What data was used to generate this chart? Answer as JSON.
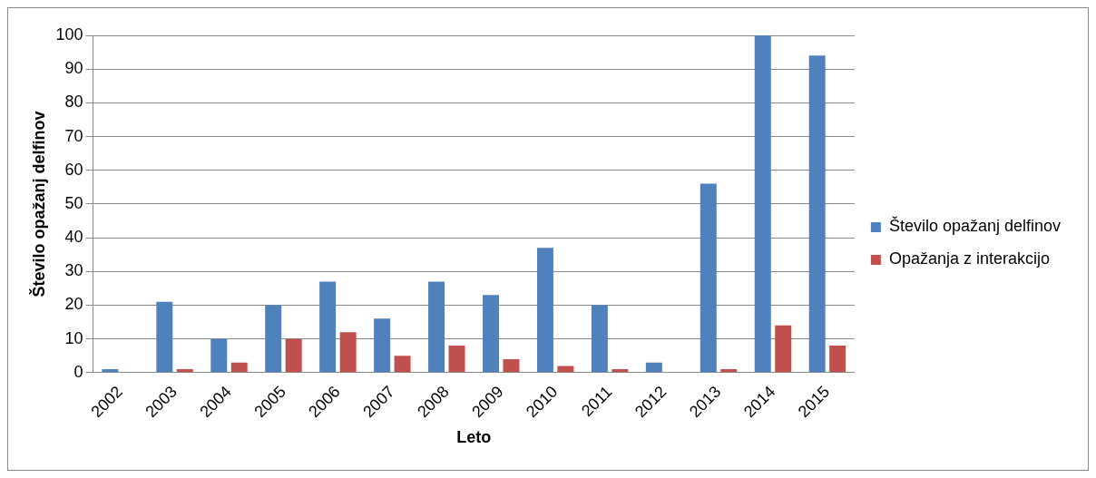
{
  "chart_data": {
    "type": "bar",
    "xlabel": "Leto",
    "ylabel": "Število opažanj delfinov",
    "categories": [
      "2002",
      "2003",
      "2004",
      "2005",
      "2006",
      "2007",
      "2008",
      "2009",
      "2010",
      "2011",
      "2012",
      "2013",
      "2014",
      "2015"
    ],
    "series": [
      {
        "name": "Število opažanj delfinov",
        "color": "#4f81bd",
        "values": [
          1,
          21,
          10,
          20,
          27,
          16,
          27,
          23,
          37,
          20,
          3,
          56,
          100,
          94
        ]
      },
      {
        "name": "Opažanja z interakcijo",
        "color": "#c0504d",
        "values": [
          0,
          1,
          3,
          10,
          12,
          5,
          8,
          4,
          2,
          1,
          0,
          1,
          14,
          8
        ]
      }
    ],
    "ylim": [
      0,
      100
    ],
    "yticks": [
      0,
      10,
      20,
      30,
      40,
      50,
      60,
      70,
      80,
      90,
      100
    ],
    "grid": "y",
    "legend": "right"
  }
}
